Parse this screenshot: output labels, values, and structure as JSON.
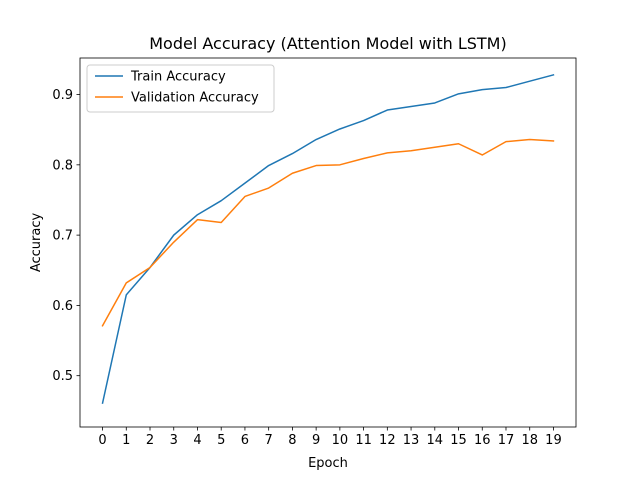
{
  "chart_data": {
    "type": "line",
    "title": "Model Accuracy (Attention Model with LSTM)",
    "xlabel": "Epoch",
    "ylabel": "Accuracy",
    "x": [
      0,
      1,
      2,
      3,
      4,
      5,
      6,
      7,
      8,
      9,
      10,
      11,
      12,
      13,
      14,
      15,
      16,
      17,
      18,
      19
    ],
    "xlim": [
      -0.95,
      19.95
    ],
    "ylim": [
      0.427,
      0.952
    ],
    "yticks": [
      0.5,
      0.6,
      0.7,
      0.8,
      0.9
    ],
    "ytick_labels": [
      "0.5",
      "0.6",
      "0.7",
      "0.8",
      "0.9"
    ],
    "xtick_labels": [
      "0",
      "1",
      "2",
      "3",
      "4",
      "5",
      "6",
      "7",
      "8",
      "9",
      "10",
      "11",
      "12",
      "13",
      "14",
      "15",
      "16",
      "17",
      "18",
      "19"
    ],
    "grid": false,
    "legend_position": "top-left",
    "series": [
      {
        "name": "Train Accuracy",
        "color": "#1f77b4",
        "values": [
          0.461,
          0.615,
          0.654,
          0.7,
          0.729,
          0.749,
          0.774,
          0.799,
          0.816,
          0.836,
          0.851,
          0.863,
          0.878,
          0.883,
          0.888,
          0.901,
          0.907,
          0.91,
          0.919,
          0.928
        ]
      },
      {
        "name": "Validation Accuracy",
        "color": "#ff7f0e",
        "values": [
          0.571,
          0.632,
          0.654,
          0.69,
          0.722,
          0.718,
          0.755,
          0.767,
          0.788,
          0.799,
          0.8,
          0.809,
          0.817,
          0.82,
          0.825,
          0.83,
          0.814,
          0.833,
          0.836,
          0.834
        ]
      }
    ]
  }
}
